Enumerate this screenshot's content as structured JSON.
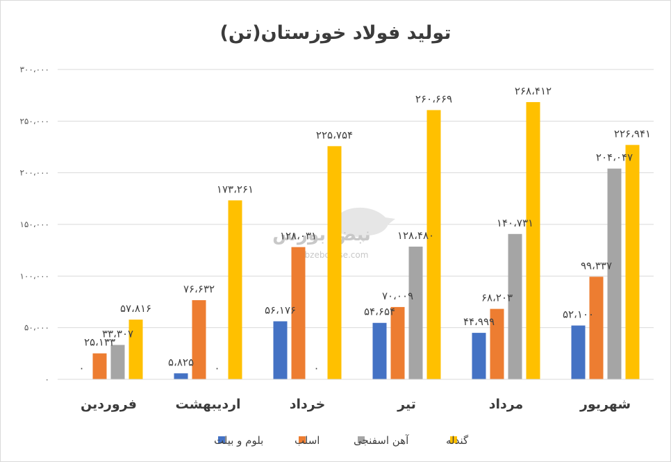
{
  "chart_data": {
    "type": "bar",
    "title": "تولید فولاد خوزستان(تن)",
    "categories": [
      "فروردین",
      "اردیبهشت",
      "خرداد",
      "تیر",
      "مرداد",
      "شهریور"
    ],
    "series": [
      {
        "name": "بلوم و بیلت",
        "color": "#4472c4",
        "values": [
          0,
          5825,
          56176,
          54654,
          44999,
          52100
        ],
        "labels": [
          "۰",
          "۵،۸۲۵",
          "۵۶،۱۷۶",
          "۵۴،۶۵۴",
          "۴۴،۹۹۹",
          "۵۲،۱۰۰"
        ]
      },
      {
        "name": "اسلب",
        "color": "#ed7d31",
        "values": [
          25133,
          76632,
          128031,
          70009,
          68203,
          99337
        ],
        "labels": [
          "۲۵،۱۳۳",
          "۷۶،۶۳۲",
          "۱۲۸،۰۳۱",
          "۷۰،۰۰۹",
          "۶۸،۲۰۳",
          "۹۹،۳۳۷"
        ]
      },
      {
        "name": "آهن اسفنجی",
        "color": "#a5a5a5",
        "values": [
          33307,
          0,
          0,
          128480,
          140731,
          204047
        ],
        "labels": [
          "۳۳،۳۰۷",
          "۰",
          "۰",
          "۱۲۸،۴۸۰",
          "۱۴۰،۷۳۱",
          "۲۰۴،۰۴۷"
        ]
      },
      {
        "name": "گندله",
        "color": "#ffc000",
        "values": [
          57816,
          173261,
          225754,
          260669,
          268412,
          226941
        ],
        "labels": [
          "۵۷،۸۱۶",
          "۱۷۳،۲۶۱",
          "۲۲۵،۷۵۴",
          "۲۶۰،۶۶۹",
          "۲۶۸،۴۱۲",
          "۲۲۶،۹۴۱"
        ]
      }
    ],
    "ylim": [
      0,
      300000
    ],
    "yticks": [
      0,
      50000,
      100000,
      150000,
      200000,
      250000,
      300000
    ],
    "ytick_labels": [
      "۰",
      "۵۰،۰۰۰",
      "۱۰۰،۰۰۰",
      "۱۵۰،۰۰۰",
      "۲۰۰،۰۰۰",
      "۲۵۰،۰۰۰",
      "۳۰۰،۰۰۰"
    ],
    "grid": true,
    "legend_position": "bottom",
    "watermark": {
      "text": "نبض بورس",
      "subtext": "nabzebourse.com"
    }
  }
}
